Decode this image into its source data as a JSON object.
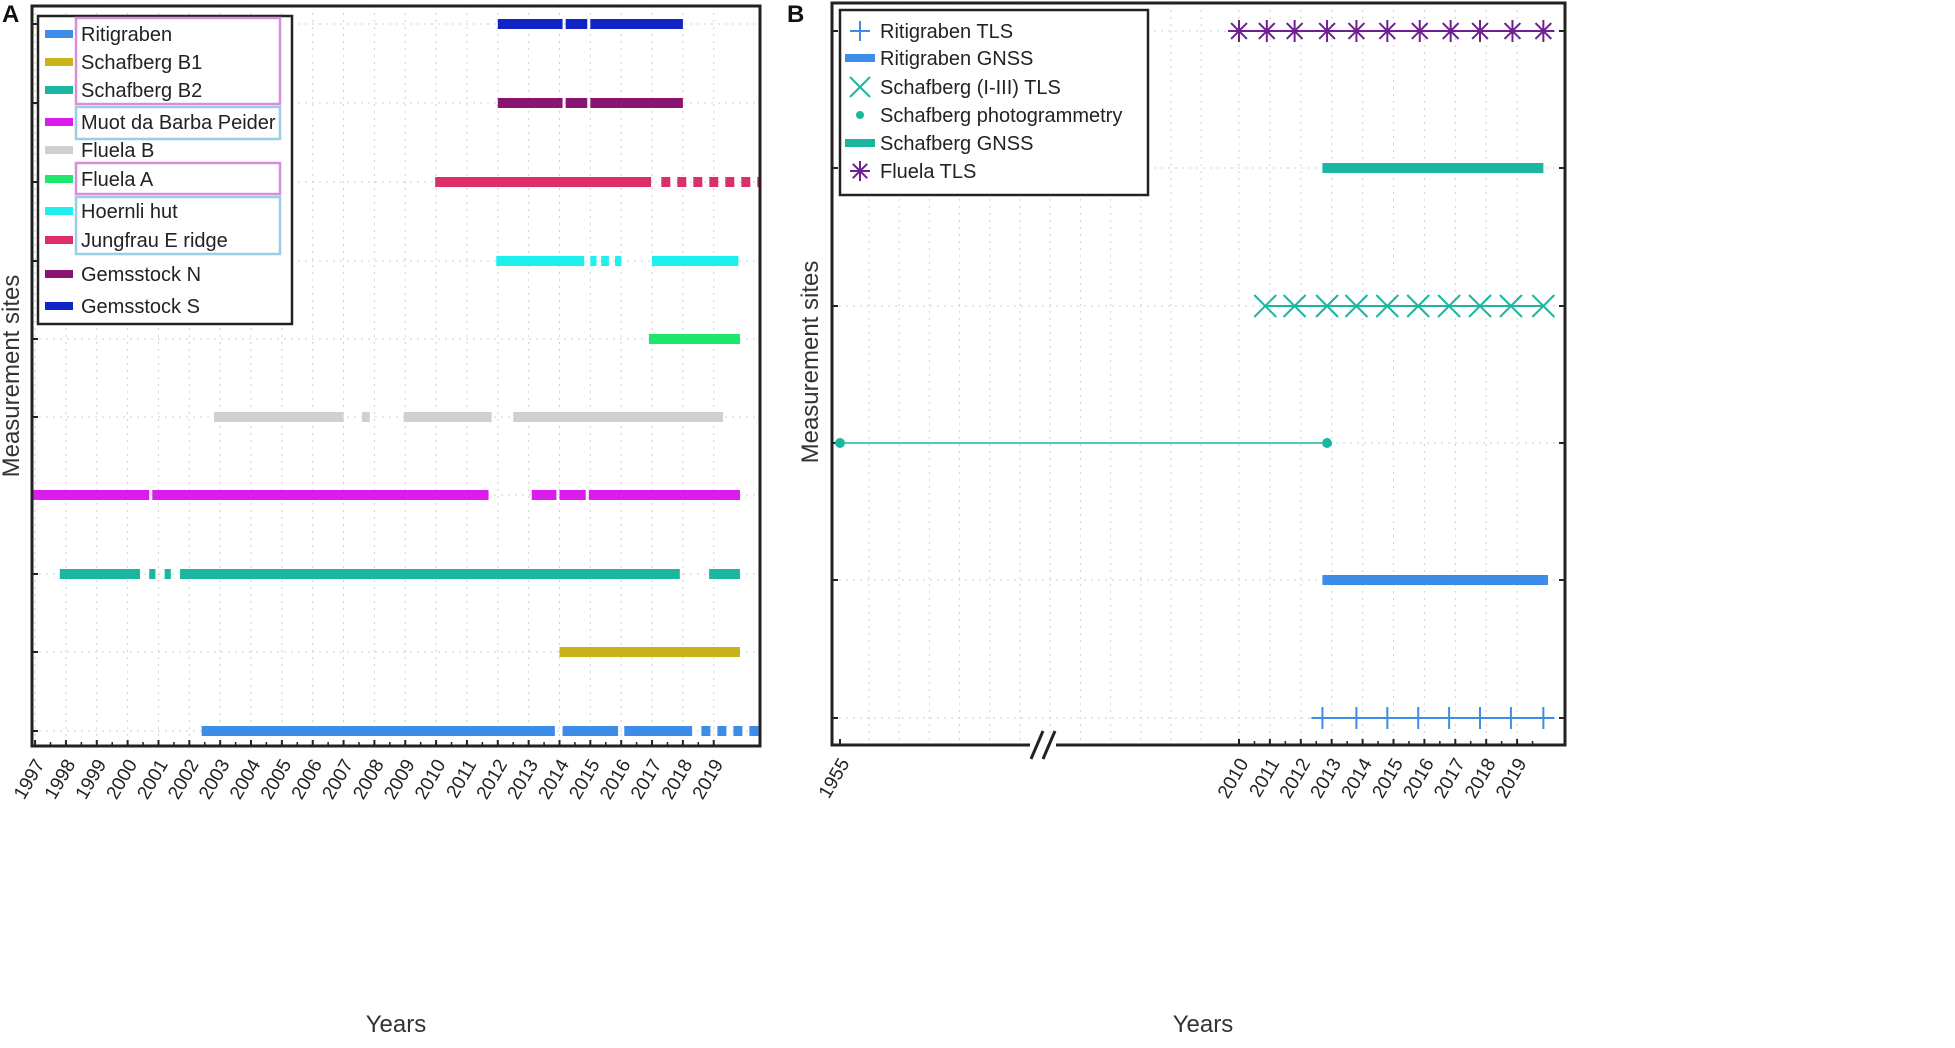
{
  "chart_data": [
    {
      "panel_label": "A",
      "type": "timeline",
      "xlabel": "Years",
      "ylabel": "Measurement sites",
      "xlim": [
        1996.9,
        2020.5
      ],
      "x_ticks": [
        "1997",
        "1998",
        "1999",
        "2000",
        "2001",
        "2002",
        "2003",
        "2004",
        "2005",
        "2006",
        "2007",
        "2008",
        "2009",
        "2010",
        "2011",
        "2012",
        "2013",
        "2014",
        "2015",
        "2016",
        "2017",
        "2018",
        "2019"
      ],
      "legend": [
        {
          "label": "Ritigraben",
          "color": "#3d8ce8"
        },
        {
          "label": "Schafberg B1",
          "color": "#c8b41a"
        },
        {
          "label": "Schafberg B2",
          "color": "#1bb6a0"
        },
        {
          "label": "Muot da Barba Peider",
          "color": "#da1ced"
        },
        {
          "label": "Fluela B",
          "color": "#d0d0d0"
        },
        {
          "label": "Fluela A",
          "color": "#1ee66e"
        },
        {
          "label": "Hoernli hut",
          "color": "#1ef0ee"
        },
        {
          "label": "Jungfrau E ridge",
          "color": "#de2e6a"
        },
        {
          "label": "Gemsstock N",
          "color": "#8a1472"
        },
        {
          "label": "Gemsstock S",
          "color": "#1124c6"
        }
      ],
      "legend_groups": [
        {
          "items": [
            "Schafberg B1",
            "Schafberg B2"
          ],
          "border_color": "#d88ed8"
        },
        {
          "items": [
            "Muot da Barba Peider"
          ],
          "border_color": "#9dcde6"
        },
        {
          "items": [
            "Fluela A"
          ],
          "border_color": "#d88ed8"
        },
        {
          "items": [
            "Hoernli hut",
            "Jungfrau E ridge"
          ],
          "border_color": "#9dcde6"
        }
      ],
      "series": [
        {
          "name": "Gemsstock S",
          "color": "#1124c6",
          "row": 0,
          "segments": [
            [
              2012.0,
              2014.1
            ],
            [
              2014.2,
              2014.9
            ],
            [
              2015.0,
              2018.0
            ]
          ],
          "dotted": []
        },
        {
          "name": "Gemsstock N",
          "color": "#8a1472",
          "row": 1,
          "segments": [
            [
              2012.0,
              2014.1
            ],
            [
              2014.2,
              2014.9
            ],
            [
              2015.0,
              2018.0
            ]
          ],
          "dotted": []
        },
        {
          "name": "Jungfrau E ridge",
          "color": "#de2e6a",
          "row": 2,
          "segments": [
            [
              2009.97,
              2016.97
            ]
          ],
          "dotted": [
            [
              2017.3,
              2020.5
            ]
          ]
        },
        {
          "name": "Hoernli hut",
          "color": "#1ef0ee",
          "row": 3,
          "segments": [
            [
              2011.95,
              2014.8
            ],
            [
              2015.0,
              2015.2
            ],
            [
              2015.35,
              2015.6
            ],
            [
              2015.8,
              2016.0
            ],
            [
              2017.0,
              2019.8
            ]
          ],
          "dotted": []
        },
        {
          "name": "Fluela A",
          "color": "#1ee66e",
          "row": 4,
          "segments": [
            [
              2016.9,
              2019.85
            ]
          ],
          "dotted": []
        },
        {
          "name": "Fluela B",
          "color": "#d0d0d0",
          "row": 5,
          "segments": [
            [
              2002.8,
              2007.0
            ],
            [
              2007.6,
              2007.85
            ],
            [
              2008.95,
              2011.8
            ],
            [
              2012.5,
              2019.3
            ]
          ],
          "dotted": []
        },
        {
          "name": "Muot da Barba Peider",
          "color": "#da1ced",
          "row": 6,
          "segments": [
            [
              1996.9,
              2000.7
            ],
            [
              2000.8,
              2011.7
            ],
            [
              2013.1,
              2013.9
            ],
            [
              2014.0,
              2014.85
            ],
            [
              2014.95,
              2019.85
            ]
          ],
          "dotted": []
        },
        {
          "name": "Schafberg B2",
          "color": "#1bb6a0",
          "row": 7,
          "segments": [
            [
              1997.8,
              2000.4
            ],
            [
              2000.7,
              2000.9
            ],
            [
              2001.2,
              2001.4
            ],
            [
              2001.7,
              2017.9
            ],
            [
              2018.85,
              2019.85
            ]
          ],
          "dotted": []
        },
        {
          "name": "Schafberg B1",
          "color": "#c8b41a",
          "row": 8,
          "segments": [
            [
              2014.0,
              2019.85
            ]
          ],
          "dotted": []
        },
        {
          "name": "Ritigraben",
          "color": "#3d8ce8",
          "row": 9,
          "segments": [
            [
              2002.4,
              2013.85
            ],
            [
              2014.1,
              2015.9
            ],
            [
              2016.1,
              2018.3
            ]
          ],
          "dotted": [
            [
              2018.6,
              2020.5
            ]
          ]
        }
      ]
    },
    {
      "panel_label": "B",
      "type": "timeline",
      "xlabel": "Years",
      "ylabel": "Measurement sites",
      "x_break": "//",
      "x_ticks": [
        "1955",
        "2010",
        "2011",
        "2012",
        "2013",
        "2014",
        "2015",
        "2016",
        "2017",
        "2018",
        "2019"
      ],
      "legend": [
        {
          "label": "Ritigraben TLS",
          "color": "#3d8ce8",
          "marker": "plus"
        },
        {
          "label": "Ritigraben GNSS",
          "color": "#3d8ce8",
          "marker": "bar"
        },
        {
          "label": "Schafberg (I-III) TLS",
          "color": "#1bb6a0",
          "marker": "x"
        },
        {
          "label": "Schafberg photogrammetry",
          "color": "#1bb6a0",
          "marker": "dot"
        },
        {
          "label": "Schafberg GNSS",
          "color": "#1bb6a0",
          "marker": "bar"
        },
        {
          "label": "Fluela TLS",
          "color": "#6e1f91",
          "marker": "star"
        }
      ],
      "series": [
        {
          "name": "Fluela TLS",
          "color": "#6e1f91",
          "row": 0,
          "kind": "markers",
          "marker": "star",
          "points": [
            2010.0,
            2010.9,
            2011.8,
            2012.85,
            2013.8,
            2014.8,
            2015.85,
            2016.85,
            2017.8,
            2018.85,
            2019.85
          ]
        },
        {
          "name": "Schafberg GNSS",
          "color": "#1bb6a0",
          "row": 1,
          "kind": "bar",
          "segments": [
            [
              2012.7,
              2019.85
            ]
          ]
        },
        {
          "name": "Schafberg (I-III) TLS",
          "color": "#1bb6a0",
          "row": 2,
          "kind": "markers",
          "marker": "x",
          "points": [
            2010.85,
            2011.8,
            2012.85,
            2013.8,
            2014.8,
            2015.8,
            2016.8,
            2017.8,
            2018.8,
            2019.85
          ]
        },
        {
          "name": "Schafberg photogrammetry",
          "color": "#1bb6a0",
          "row": 3,
          "kind": "markers",
          "marker": "dot",
          "points": [
            1955,
            2012.85
          ]
        },
        {
          "name": "Ritigraben GNSS",
          "color": "#3d8ce8",
          "row": 4,
          "kind": "bar",
          "segments": [
            [
              2012.7,
              2020.0
            ]
          ]
        },
        {
          "name": "Ritigraben TLS",
          "color": "#3d8ce8",
          "row": 5,
          "kind": "markers",
          "marker": "plus",
          "points": [
            2012.7,
            2013.8,
            2014.8,
            2015.8,
            2016.8,
            2017.8,
            2018.8,
            2019.85
          ]
        }
      ]
    }
  ]
}
